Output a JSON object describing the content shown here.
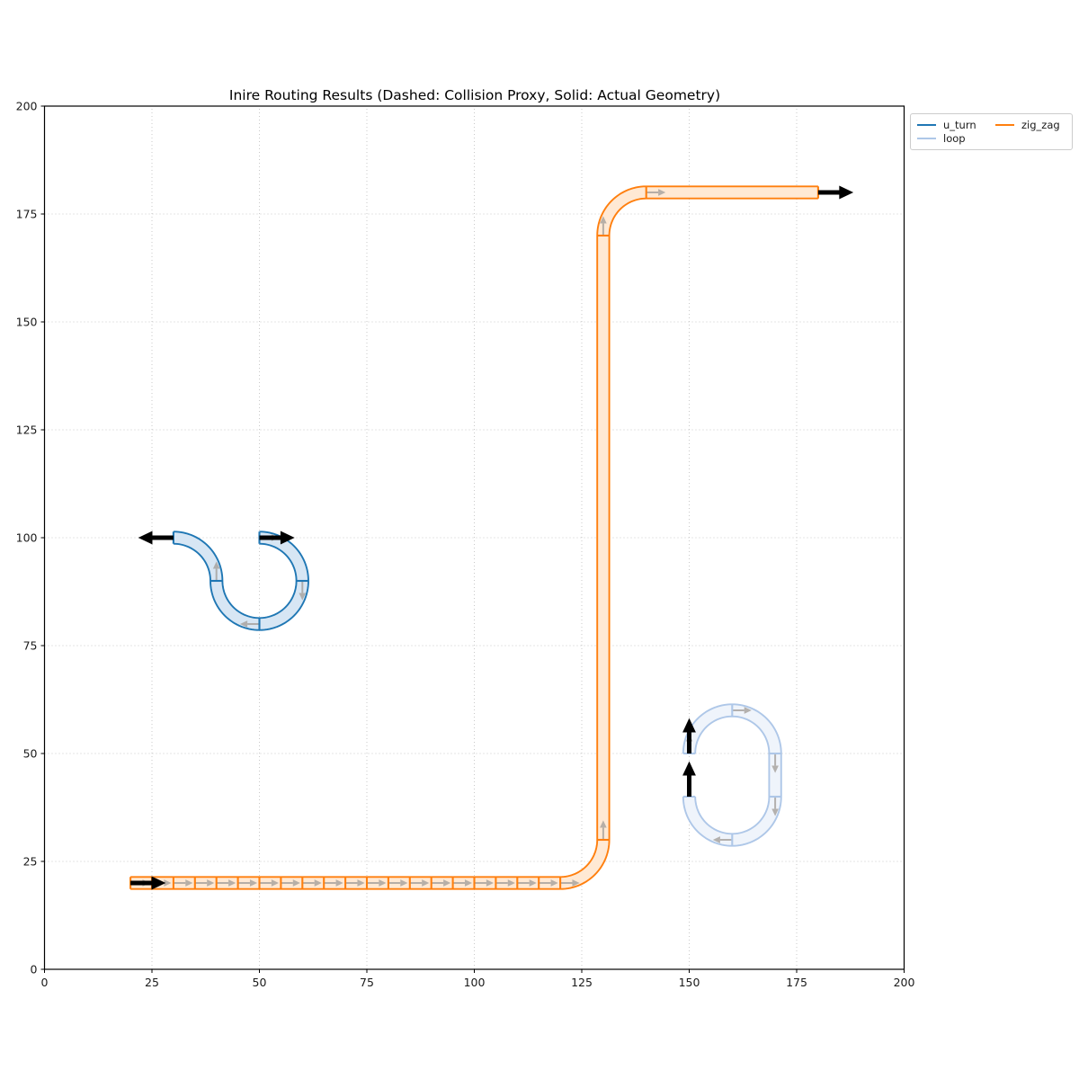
{
  "title": "Inire Routing Results (Dashed: Collision Proxy, Solid: Actual Geometry)",
  "legend": {
    "items": [
      {
        "label": "u_turn",
        "color": "#1f77b4"
      },
      {
        "label": "loop",
        "color": "#aec7e8"
      },
      {
        "label": "zig_zag",
        "color": "#ff7f0e"
      }
    ]
  },
  "chart_data": {
    "type": "route-plot",
    "title": "Inire Routing Results (Dashed: Collision Proxy, Solid: Actual Geometry)",
    "xlim": [
      0,
      200
    ],
    "ylim": [
      0,
      200
    ],
    "xticks": [
      0,
      25,
      50,
      75,
      100,
      125,
      150,
      175,
      200
    ],
    "yticks": [
      0,
      25,
      50,
      75,
      100,
      125,
      150,
      175,
      200
    ],
    "grid": "dotted",
    "legend_position": "outside-top-right",
    "tube_half_width": 1.4,
    "styles": {
      "grid_color": "#c9c9c9",
      "spine_color": "#000000",
      "tick_label_color": "#1a1a1a",
      "direction_arrow_color": "#a5a09b",
      "pose_arrow_color": "#000000"
    },
    "routes": [
      {
        "name": "u_turn",
        "edge_color": "#1f77b4",
        "fill_color": "#d7e6f4",
        "start_pose": {
          "x": 50,
          "y": 100,
          "angle": 0
        },
        "end_pose": {
          "x": 30,
          "y": 100,
          "angle": 180
        },
        "segments": [
          {
            "type": "arc",
            "cx": 50,
            "cy": 90,
            "r": 10,
            "a0": 90,
            "a1": 0
          },
          {
            "type": "arc",
            "cx": 50,
            "cy": 90,
            "r": 10,
            "a0": 0,
            "a1": -90
          },
          {
            "type": "arc",
            "cx": 50,
            "cy": 90,
            "r": 10,
            "a0": -90,
            "a1": -180
          },
          {
            "type": "arc",
            "cx": 30,
            "cy": 90,
            "r": 10,
            "a0": 0,
            "a1": 90
          }
        ]
      },
      {
        "name": "loop",
        "edge_color": "#aec7e8",
        "fill_color": "#eff4fb",
        "start_pose": {
          "x": 150,
          "y": 50,
          "angle": 90
        },
        "end_pose": {
          "x": 150,
          "y": 40,
          "angle": 90
        },
        "segments": [
          {
            "type": "arc",
            "cx": 160,
            "cy": 50,
            "r": 10,
            "a0": 180,
            "a1": 90
          },
          {
            "type": "arc",
            "cx": 160,
            "cy": 50,
            "r": 10,
            "a0": 90,
            "a1": 0
          },
          {
            "type": "line",
            "x1": 170,
            "y1": 50,
            "x2": 170,
            "y2": 40
          },
          {
            "type": "arc",
            "cx": 160,
            "cy": 40,
            "r": 10,
            "a0": 0,
            "a1": -90
          },
          {
            "type": "arc",
            "cx": 160,
            "cy": 40,
            "r": 10,
            "a0": -90,
            "a1": -180
          }
        ]
      },
      {
        "name": "zig_zag",
        "edge_color": "#ff7f0e",
        "fill_color": "#ffe9d4",
        "start_pose": {
          "x": 20,
          "y": 20,
          "angle": 0
        },
        "end_pose": {
          "x": 180,
          "y": 180,
          "angle": 0
        },
        "segments": [
          {
            "type": "line",
            "x1": 20,
            "y1": 20,
            "x2": 25,
            "y2": 20
          },
          {
            "type": "line",
            "x1": 25,
            "y1": 20,
            "x2": 30,
            "y2": 20
          },
          {
            "type": "line",
            "x1": 30,
            "y1": 20,
            "x2": 35,
            "y2": 20
          },
          {
            "type": "line",
            "x1": 35,
            "y1": 20,
            "x2": 40,
            "y2": 20
          },
          {
            "type": "line",
            "x1": 40,
            "y1": 20,
            "x2": 45,
            "y2": 20
          },
          {
            "type": "line",
            "x1": 45,
            "y1": 20,
            "x2": 50,
            "y2": 20
          },
          {
            "type": "line",
            "x1": 50,
            "y1": 20,
            "x2": 55,
            "y2": 20
          },
          {
            "type": "line",
            "x1": 55,
            "y1": 20,
            "x2": 60,
            "y2": 20
          },
          {
            "type": "line",
            "x1": 60,
            "y1": 20,
            "x2": 65,
            "y2": 20
          },
          {
            "type": "line",
            "x1": 65,
            "y1": 20,
            "x2": 70,
            "y2": 20
          },
          {
            "type": "line",
            "x1": 70,
            "y1": 20,
            "x2": 75,
            "y2": 20
          },
          {
            "type": "line",
            "x1": 75,
            "y1": 20,
            "x2": 80,
            "y2": 20
          },
          {
            "type": "line",
            "x1": 80,
            "y1": 20,
            "x2": 85,
            "y2": 20
          },
          {
            "type": "line",
            "x1": 85,
            "y1": 20,
            "x2": 90,
            "y2": 20
          },
          {
            "type": "line",
            "x1": 90,
            "y1": 20,
            "x2": 95,
            "y2": 20
          },
          {
            "type": "line",
            "x1": 95,
            "y1": 20,
            "x2": 100,
            "y2": 20
          },
          {
            "type": "line",
            "x1": 100,
            "y1": 20,
            "x2": 105,
            "y2": 20
          },
          {
            "type": "line",
            "x1": 105,
            "y1": 20,
            "x2": 110,
            "y2": 20
          },
          {
            "type": "line",
            "x1": 110,
            "y1": 20,
            "x2": 115,
            "y2": 20
          },
          {
            "type": "line",
            "x1": 115,
            "y1": 20,
            "x2": 120,
            "y2": 20
          },
          {
            "type": "arc",
            "cx": 120,
            "cy": 30,
            "r": 10,
            "a0": -90,
            "a1": 0
          },
          {
            "type": "line",
            "x1": 130,
            "y1": 30,
            "x2": 130,
            "y2": 170
          },
          {
            "type": "arc",
            "cx": 140,
            "cy": 170,
            "r": 10,
            "a0": 180,
            "a1": 90
          },
          {
            "type": "line",
            "x1": 140,
            "y1": 180,
            "x2": 180,
            "y2": 180
          }
        ]
      }
    ]
  }
}
